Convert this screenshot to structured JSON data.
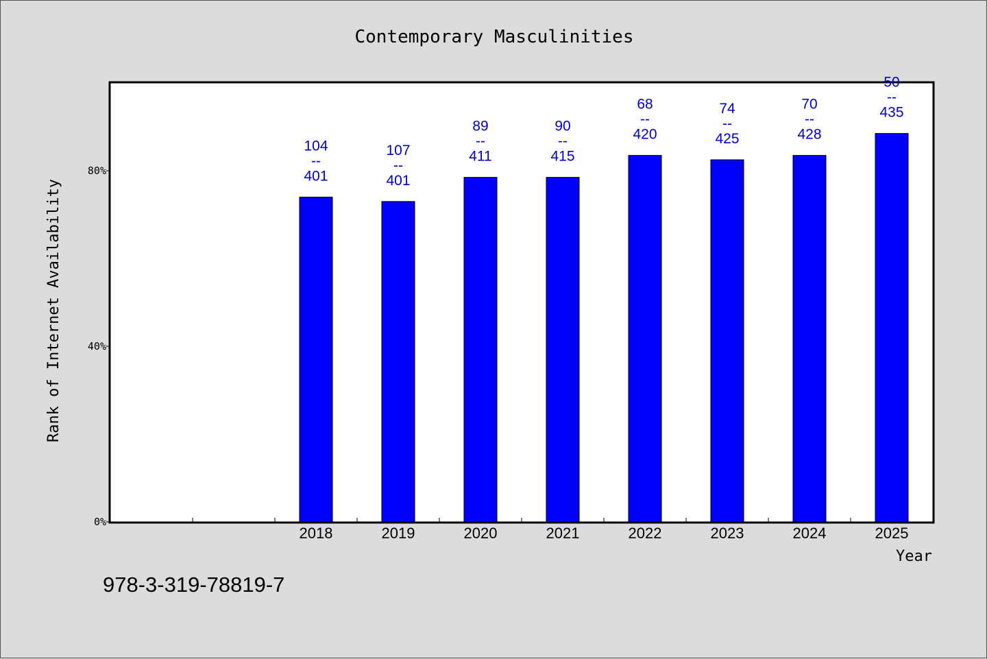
{
  "chart_data": {
    "type": "bar",
    "title": "Contemporary Masculinities",
    "xlabel": "Year",
    "ylabel": "Rank of Internet Availability",
    "categories": [
      "",
      "",
      "2018",
      "2019",
      "2020",
      "2021",
      "2022",
      "2023",
      "2024",
      "2025"
    ],
    "values": [
      null,
      null,
      74,
      73,
      78.5,
      78.5,
      83.5,
      82.5,
      83.5,
      88.5
    ],
    "data_labels": [
      null,
      null,
      {
        "rank": "104",
        "sep": "--",
        "total": "401"
      },
      {
        "rank": "107",
        "sep": "--",
        "total": "401"
      },
      {
        "rank": "89",
        "sep": "--",
        "total": "411"
      },
      {
        "rank": "90",
        "sep": "--",
        "total": "415"
      },
      {
        "rank": "68",
        "sep": "--",
        "total": "420"
      },
      {
        "rank": "74",
        "sep": "--",
        "total": "425"
      },
      {
        "rank": "70",
        "sep": "--",
        "total": "428"
      },
      {
        "rank": "50",
        "sep": "--",
        "total": "435"
      }
    ],
    "ylim": [
      0,
      100
    ],
    "yticks": [
      {
        "value": 0,
        "label": "0%"
      },
      {
        "value": 40,
        "label": "40%"
      },
      {
        "value": 80,
        "label": "80%"
      }
    ],
    "grid": false,
    "legend": "none",
    "bar_color": "#0000ff",
    "label_color": "#0000cc"
  },
  "footer": {
    "isbn": "978-3-319-78819-7"
  }
}
